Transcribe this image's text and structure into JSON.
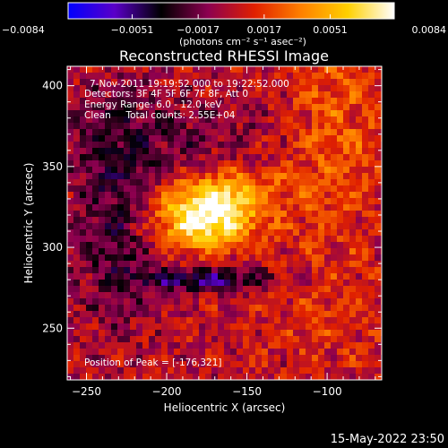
{
  "chart_data": {
    "type": "heatmap",
    "title": "Reconstructed RHESSI Image",
    "xlabel": "Heliocentric X (arcsec)",
    "ylabel": "Heliocentric Y (arcsec)",
    "xlim": [
      -262,
      -66
    ],
    "ylim": [
      218,
      412
    ],
    "xticks": [
      -250,
      -200,
      -150,
      -100
    ],
    "xtick_labels": [
      "−250",
      "−200",
      "−150",
      "−100"
    ],
    "yticks": [
      250,
      300,
      350,
      400
    ],
    "ytick_labels": [
      "250",
      "300",
      "350",
      "400"
    ],
    "colorbar": {
      "min": -0.0084,
      "max": 0.0084,
      "ticks": [
        -0.0084,
        -0.0051,
        -0.0017,
        0.0017,
        0.0051,
        0.0084
      ],
      "tick_labels": [
        "−0.0084",
        "−0.0051",
        "−0.0017",
        "0.0017",
        "0.0051",
        "0.0084"
      ],
      "unit_label": "(photons cm⁻² s⁻¹ asec⁻²)",
      "colormap": [
        "#0000ff",
        "#5a00c8",
        "#000000",
        "#8c0050",
        "#e02000",
        "#ff8000",
        "#ffd000",
        "#ffffff"
      ]
    },
    "peak": {
      "x": -176,
      "y": 321
    },
    "annotations": [
      "7-Nov-2011 19:19:52.000 to 19:22:52.000",
      "Detectors: 3F 4F 5F 6F 7F 8F, Att 0",
      "Energy Range: 6.0 - 12.0 keV",
      "Clean     Total counts: 2.55E+04",
      "Position of Peak = [-176,321]"
    ],
    "sources": [
      {
        "x": -176,
        "y": 318,
        "sigma_x": 22,
        "sigma_y": 13,
        "value": 0.0084
      },
      {
        "x": -160,
        "y": 335,
        "sigma_x": 22,
        "sigma_y": 10,
        "value": 0.0036
      },
      {
        "x": -96,
        "y": 368,
        "sigma_x": 22,
        "sigma_y": 48,
        "value": 0.0026
      },
      {
        "x": -176,
        "y": 280,
        "sigma_x": 30,
        "sigma_y": 5,
        "value": -0.005
      },
      {
        "x": -232,
        "y": 318,
        "sigma_x": 18,
        "sigma_y": 45,
        "value": -0.003
      },
      {
        "x": -200,
        "y": 370,
        "sigma_x": 48,
        "sigma_y": 18,
        "value": -0.0018
      },
      {
        "x": -100,
        "y": 258,
        "sigma_x": 30,
        "sigma_y": 25,
        "value": 0.0012
      }
    ]
  },
  "footer": {
    "date": "15-May-2022 23:50"
  }
}
